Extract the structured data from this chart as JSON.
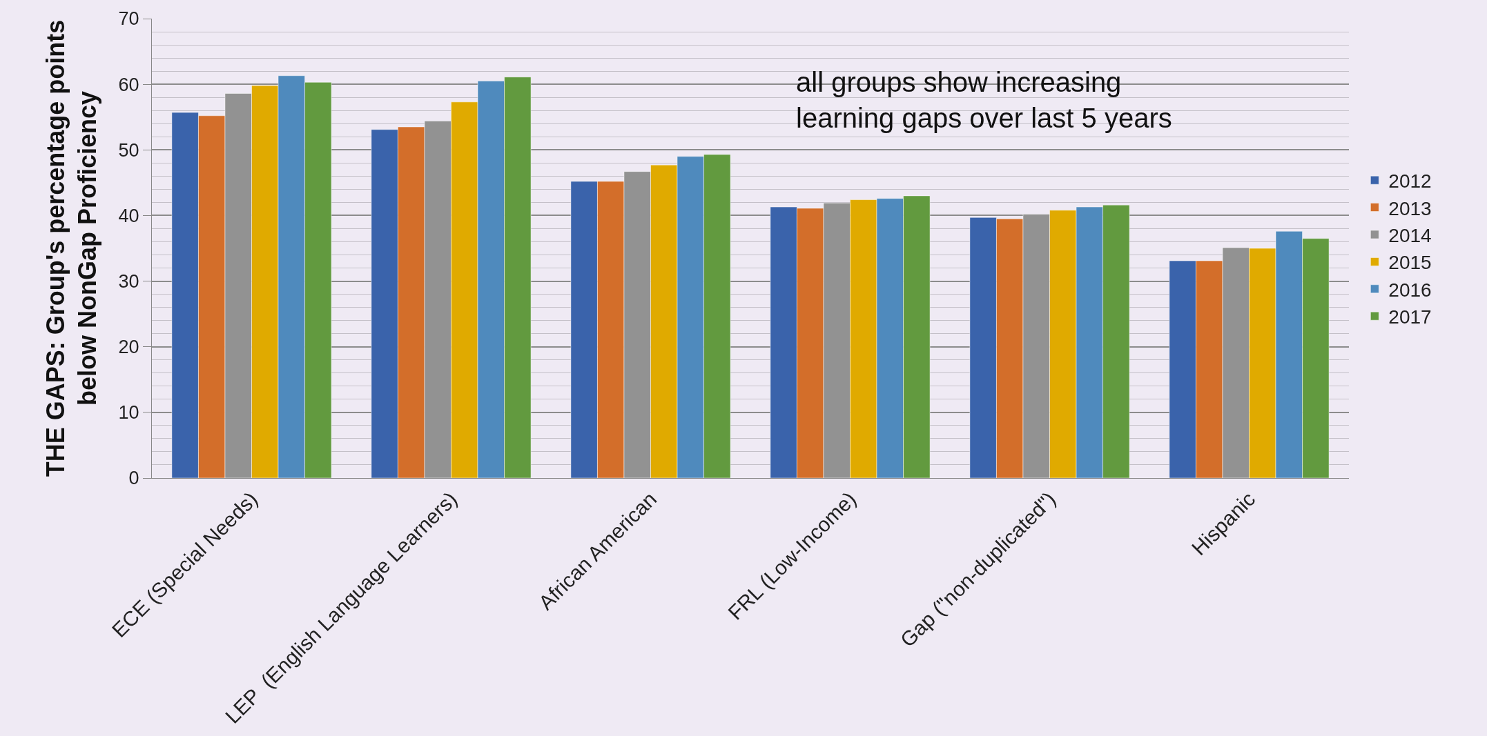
{
  "chart_data": {
    "type": "bar",
    "ylabel": "THE GAPS: Group's percentage points\nbelow NonGap Proficiency",
    "categories": [
      "ECE (Special Needs)",
      "LEP  (English Language Learners)",
      "African American",
      "FRL (Low-Income)",
      "Gap (\"non-duplicated\")",
      "Hispanic"
    ],
    "series": [
      {
        "name": "2012",
        "color": "#3a63ab",
        "values": [
          55.7,
          53.1,
          45.2,
          41.3,
          39.7,
          33.1
        ]
      },
      {
        "name": "2013",
        "color": "#d36e2a",
        "values": [
          55.2,
          53.5,
          45.2,
          41.1,
          39.5,
          33.1
        ]
      },
      {
        "name": "2014",
        "color": "#929292",
        "values": [
          58.6,
          54.4,
          46.7,
          41.9,
          40.2,
          35.1
        ]
      },
      {
        "name": "2015",
        "color": "#e0aa00",
        "values": [
          59.8,
          57.3,
          47.7,
          42.4,
          40.8,
          35.0
        ]
      },
      {
        "name": "2016",
        "color": "#4f8abd",
        "values": [
          61.3,
          60.5,
          49.0,
          42.6,
          41.3,
          37.6
        ]
      },
      {
        "name": "2017",
        "color": "#629a3f",
        "values": [
          60.3,
          61.1,
          49.3,
          43.0,
          41.6,
          36.5
        ]
      }
    ],
    "ylim": [
      0,
      70
    ],
    "yticks": [
      0,
      10,
      20,
      30,
      40,
      50,
      60,
      70
    ],
    "grid": "y",
    "legend": "right",
    "annotations": [
      "all groups show increasing\nlearning gaps over last 5 years"
    ]
  }
}
